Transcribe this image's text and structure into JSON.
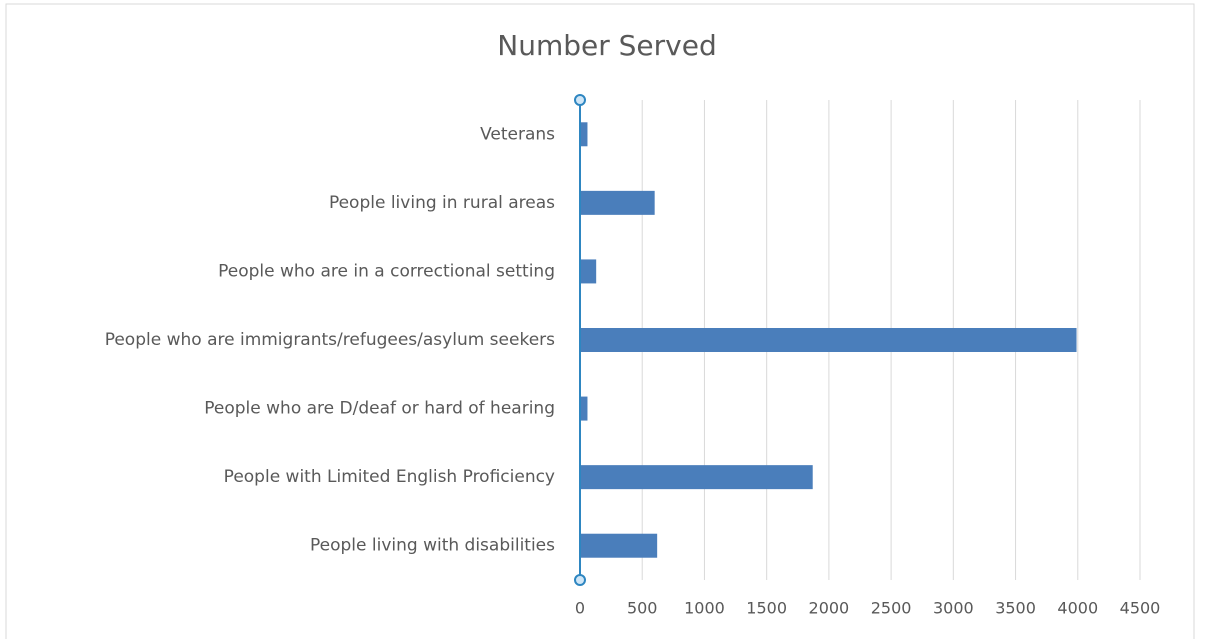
{
  "chart_data": {
    "type": "bar",
    "orientation": "horizontal",
    "title": "Number Served",
    "categories": [
      "Veterans",
      "People living in rural areas",
      "People who are in a correctional setting",
      "People who are immigrants/refugees/asylum seekers",
      "People who are D/deaf or hard of hearing",
      "People with Limited English Proficiency",
      "People living with disabilities"
    ],
    "values": [
      60,
      600,
      130,
      3990,
      60,
      1870,
      620
    ],
    "color": "#4a7ebb",
    "xlim": [
      0,
      4500
    ],
    "xticks": [
      0,
      500,
      1000,
      1500,
      2000,
      2500,
      3000,
      3500,
      4000,
      4500
    ],
    "grid": true
  }
}
